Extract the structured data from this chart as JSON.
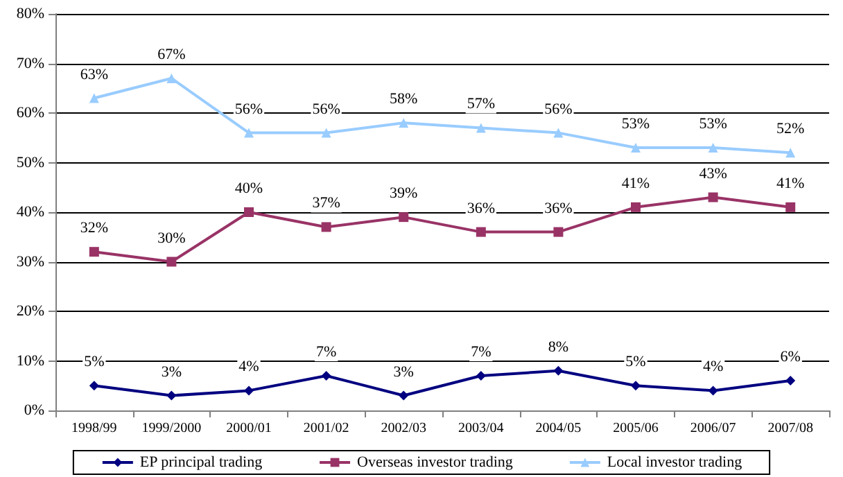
{
  "chart_data": {
    "type": "line",
    "categories": [
      "1998/99",
      "1999/2000",
      "2000/01",
      "2001/02",
      "2002/03",
      "2003/04",
      "2004/05",
      "2005/06",
      "2006/07",
      "2007/08"
    ],
    "series": [
      {
        "name": "EP principal trading",
        "color": "#000080",
        "marker": "diamond",
        "values": [
          5,
          3,
          4,
          7,
          3,
          7,
          8,
          5,
          4,
          6
        ],
        "value_labels": [
          "5%",
          "3%",
          "4%",
          "7%",
          "3%",
          "7%",
          "8%",
          "5%",
          "4%",
          "6%"
        ]
      },
      {
        "name": "Overseas investor trading",
        "color": "#993366",
        "marker": "square",
        "values": [
          32,
          30,
          40,
          37,
          39,
          36,
          36,
          41,
          43,
          41
        ],
        "value_labels": [
          "32%",
          "30%",
          "40%",
          "37%",
          "39%",
          "36%",
          "36%",
          "41%",
          "43%",
          "41%"
        ]
      },
      {
        "name": "Local investor trading",
        "color": "#99ccff",
        "marker": "triangle",
        "values": [
          63,
          67,
          56,
          56,
          58,
          57,
          56,
          53,
          53,
          52
        ],
        "value_labels": [
          "63%",
          "67%",
          "56%",
          "56%",
          "58%",
          "57%",
          "56%",
          "53%",
          "53%",
          "52%"
        ]
      }
    ],
    "ylim": [
      0,
      80
    ],
    "yticks": [
      {
        "value": 0,
        "label": "0%"
      },
      {
        "value": 10,
        "label": "10%"
      },
      {
        "value": 20,
        "label": "20%"
      },
      {
        "value": 30,
        "label": "30%"
      },
      {
        "value": 40,
        "label": "40%"
      },
      {
        "value": 50,
        "label": "50%"
      },
      {
        "value": 60,
        "label": "60%"
      },
      {
        "value": 70,
        "label": "70%"
      },
      {
        "value": 80,
        "label": "80%"
      }
    ],
    "grid": "y",
    "legend": "bottom"
  }
}
